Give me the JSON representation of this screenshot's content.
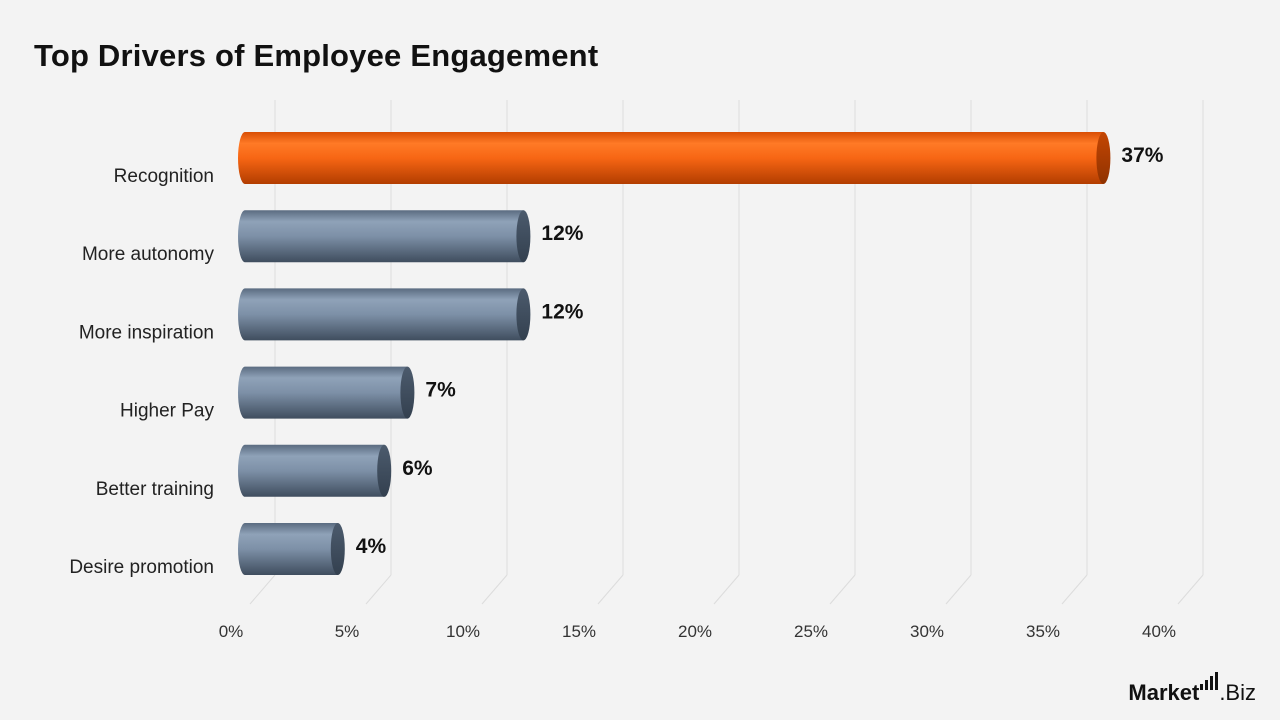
{
  "title": "Top Drivers of Employee Engagement",
  "logo": {
    "strong": "Market",
    "suffix": ".Biz"
  },
  "colors": {
    "highlight": "#f26418",
    "default": "#6f8197"
  },
  "chart_data": {
    "type": "bar",
    "orientation": "horizontal",
    "title": "Top Drivers of Employee Engagement",
    "categories": [
      "Recognition",
      "More autonomy",
      "More inspiration",
      "Higher Pay",
      "Better training",
      "Desire promotion"
    ],
    "values": [
      37,
      12,
      12,
      7,
      6,
      4
    ],
    "value_labels": [
      "37%",
      "12%",
      "12%",
      "7%",
      "6%",
      "4%"
    ],
    "highlight_index": 0,
    "xlim": [
      0,
      40
    ],
    "xticks": [
      "0%",
      "5%",
      "10%",
      "15%",
      "20%",
      "25%",
      "30%",
      "35%",
      "40%"
    ],
    "xtick_values": [
      0,
      5,
      10,
      15,
      20,
      25,
      30,
      35,
      40
    ],
    "grid": true,
    "legend": "none"
  }
}
